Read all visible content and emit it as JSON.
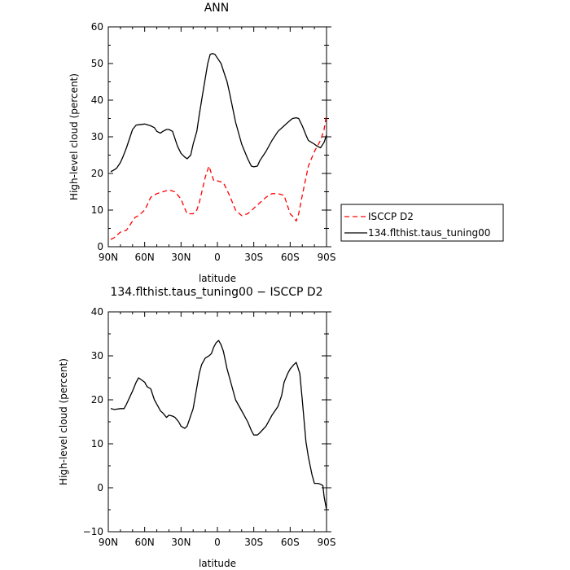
{
  "chart_data": [
    {
      "type": "line",
      "title": "ANN",
      "xlabel": "latitude",
      "ylabel": "High-level cloud (percent)",
      "xlim": [
        -90,
        90
      ],
      "ylim": [
        0,
        60
      ],
      "xticks": [
        -90,
        -60,
        -30,
        0,
        30,
        60,
        90
      ],
      "xtick_labels": [
        "90N",
        "60N",
        "30N",
        "0",
        "30S",
        "60S",
        "90S"
      ],
      "yticks": [
        0,
        10,
        20,
        30,
        40,
        50,
        60
      ],
      "ytick_labels": [
        "0",
        "10",
        "20",
        "30",
        "40",
        "50",
        "60"
      ],
      "legend_position": "right",
      "series": [
        {
          "name": "ISCCP D2",
          "color": "#ff0000",
          "dash": "dashed",
          "x": [
            -88,
            -85,
            -80,
            -75,
            -72,
            -68,
            -65,
            -60,
            -57,
            -55,
            -50,
            -45,
            -40,
            -35,
            -30,
            -27,
            -25,
            -20,
            -17,
            -15,
            -10,
            -7,
            -5,
            -3,
            0,
            5,
            10,
            15,
            20,
            25,
            30,
            35,
            40,
            45,
            50,
            55,
            58,
            60,
            63,
            65,
            67,
            70,
            75,
            80,
            85,
            88,
            90
          ],
          "y": [
            2,
            2.5,
            4,
            4.5,
            6,
            8,
            8.5,
            10,
            12,
            13.5,
            14.5,
            15,
            15.5,
            15,
            13,
            10.5,
            9,
            9,
            10,
            12,
            19,
            22,
            20,
            18,
            18,
            17.5,
            14,
            10,
            8.5,
            9,
            10.5,
            12,
            13.5,
            14.5,
            14.5,
            14,
            11,
            9,
            8,
            7,
            9,
            14,
            22,
            26,
            29,
            32,
            36
          ]
        },
        {
          "name": "134.flthist.taus_tuning00",
          "color": "#000000",
          "dash": "solid",
          "x": [
            -88,
            -85,
            -83,
            -80,
            -78,
            -75,
            -72,
            -70,
            -67,
            -65,
            -60,
            -55,
            -52,
            -50,
            -47,
            -45,
            -42,
            -40,
            -37,
            -35,
            -33,
            -30,
            -27,
            -25,
            -22,
            -20,
            -17,
            -15,
            -12,
            -10,
            -8,
            -6,
            -4,
            -2,
            0,
            3,
            5,
            8,
            10,
            15,
            20,
            25,
            28,
            30,
            33,
            35,
            40,
            45,
            50,
            55,
            60,
            62,
            65,
            67,
            70,
            73,
            75,
            80,
            82,
            85,
            88,
            90
          ],
          "y": [
            20.5,
            21,
            21.5,
            23,
            24.5,
            27,
            30,
            32,
            33.2,
            33.3,
            33.5,
            33,
            32.5,
            31.5,
            31,
            31.5,
            32,
            32,
            31.5,
            29.5,
            27.5,
            25.5,
            24.5,
            24,
            25,
            28,
            31.5,
            36,
            42,
            46,
            50,
            52.5,
            52.7,
            52.5,
            51.5,
            50,
            48,
            45,
            42,
            34,
            28,
            24,
            22,
            21.8,
            22,
            23.5,
            26,
            29,
            31.5,
            33,
            34.5,
            35,
            35.2,
            35,
            33,
            30.5,
            29,
            28,
            27.5,
            27,
            28.5,
            30.5
          ]
        }
      ]
    },
    {
      "type": "line",
      "title": "134.flthist.taus_tuning00 − ISCCP D2",
      "xlabel": "latitude",
      "ylabel": "High-level cloud (percent)",
      "xlim": [
        -90,
        90
      ],
      "ylim": [
        -10,
        40
      ],
      "xticks": [
        -90,
        -60,
        -30,
        0,
        30,
        60,
        90
      ],
      "xtick_labels": [
        "90N",
        "60N",
        "30N",
        "0",
        "30S",
        "60S",
        "90S"
      ],
      "yticks": [
        -10,
        0,
        10,
        20,
        30,
        40
      ],
      "ytick_labels": [
        "−10",
        "0",
        "10",
        "20",
        "30",
        "40"
      ],
      "series": [
        {
          "color": "#000000",
          "dash": "solid",
          "x": [
            -88,
            -85,
            -80,
            -77,
            -75,
            -70,
            -67,
            -65,
            -60,
            -58,
            -55,
            -52,
            -50,
            -47,
            -45,
            -42,
            -40,
            -37,
            -35,
            -32,
            -30,
            -27,
            -25,
            -20,
            -15,
            -13,
            -10,
            -7,
            -5,
            -3,
            -1,
            1,
            3,
            5,
            8,
            10,
            15,
            20,
            25,
            28,
            30,
            33,
            35,
            40,
            45,
            50,
            53,
            55,
            58,
            60,
            63,
            65,
            68,
            70,
            73,
            75,
            78,
            80,
            83,
            85,
            87,
            88,
            90
          ],
          "y": [
            18,
            17.8,
            18,
            18,
            19,
            22,
            24,
            25,
            24,
            23,
            22.5,
            20,
            19,
            17.5,
            17,
            16,
            16.5,
            16.3,
            16,
            15,
            14,
            13.5,
            14,
            18,
            26,
            28,
            29.5,
            30,
            30.5,
            32,
            33,
            33.5,
            32.5,
            31,
            27,
            25,
            20,
            17.5,
            15,
            13,
            12,
            12,
            12.5,
            14,
            16.5,
            18.5,
            21,
            24,
            26,
            27,
            28,
            28.5,
            26,
            20,
            10.5,
            7,
            3,
            1,
            1,
            0.8,
            0.5,
            -2,
            -5
          ]
        }
      ]
    }
  ]
}
